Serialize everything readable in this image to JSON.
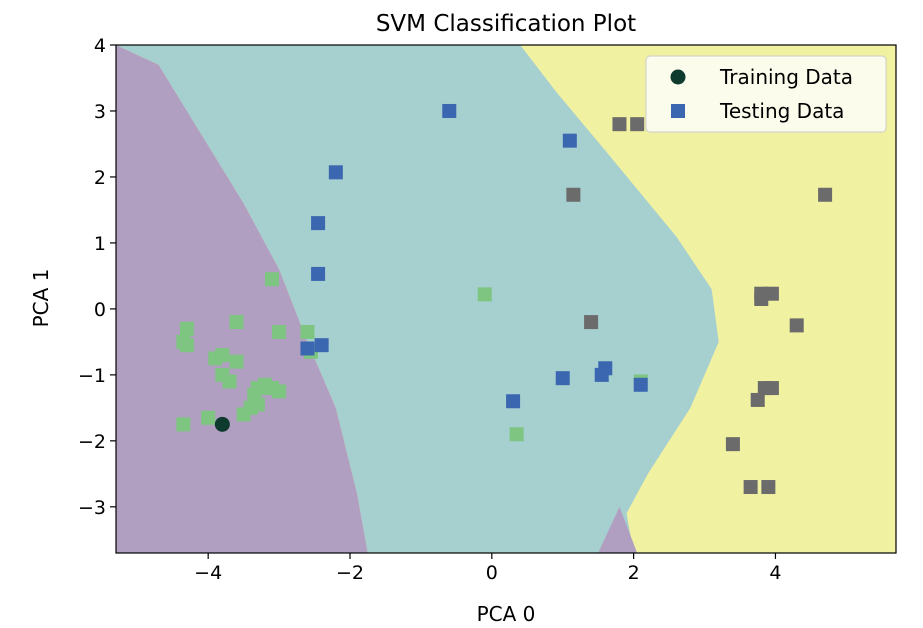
{
  "chart_data": {
    "type": "scatter",
    "title": "SVM Classification Plot",
    "xlabel": "PCA 0",
    "ylabel": "PCA 1",
    "xlim": [
      -5.3,
      5.7
    ],
    "ylim": [
      -3.7,
      4.0
    ],
    "xticks": [
      -4,
      -2,
      0,
      2,
      4
    ],
    "yticks": [
      -3,
      -2,
      -1,
      0,
      1,
      2,
      3,
      4
    ],
    "grid": false,
    "legend_position": "top-right",
    "regions": {
      "colors": {
        "class0": "#b19fc1",
        "class1": "#a6cfd0",
        "class2": "#f1f1a2"
      },
      "boundary_left": [
        [
          -5.3,
          4.0
        ],
        [
          -4.7,
          3.7
        ],
        [
          -4.3,
          3.0
        ],
        [
          -3.9,
          2.3
        ],
        [
          -3.5,
          1.6
        ],
        [
          -3.0,
          0.6
        ],
        [
          -2.6,
          -0.5
        ],
        [
          -2.2,
          -1.5
        ],
        [
          -1.9,
          -2.8
        ],
        [
          -1.75,
          -3.7
        ]
      ],
      "boundary_right": [
        [
          0.4,
          4.0
        ],
        [
          0.9,
          3.3
        ],
        [
          1.6,
          2.4
        ],
        [
          2.6,
          1.1
        ],
        [
          3.1,
          0.3
        ],
        [
          3.2,
          -0.5
        ],
        [
          2.8,
          -1.5
        ],
        [
          2.2,
          -2.5
        ],
        [
          1.9,
          -3.1
        ],
        [
          2.0,
          -3.7
        ]
      ],
      "pocket": [
        [
          1.5,
          -3.7
        ],
        [
          1.8,
          -3.0
        ],
        [
          2.05,
          -3.7
        ]
      ]
    },
    "series": [
      {
        "name": "Training Data",
        "marker": "circle",
        "color": "#0e3b2e",
        "points": [
          [
            -3.8,
            -1.75
          ]
        ]
      },
      {
        "name": "Testing Data",
        "marker": "square",
        "color": "#3a67b0",
        "points": []
      }
    ],
    "points_by_class": [
      {
        "class": "class0",
        "color": "#7dc580",
        "marker": "square",
        "points": [
          [
            -4.3,
            -0.3
          ],
          [
            -4.35,
            -0.5
          ],
          [
            -4.3,
            -0.55
          ],
          [
            -3.6,
            -0.2
          ],
          [
            -3.9,
            -0.75
          ],
          [
            -3.8,
            -0.7
          ],
          [
            -3.6,
            -0.8
          ],
          [
            -3.8,
            -1.0
          ],
          [
            -3.7,
            -1.1
          ],
          [
            -3.3,
            -1.2
          ],
          [
            -3.2,
            -1.15
          ],
          [
            -3.1,
            -1.2
          ],
          [
            -3.0,
            -1.25
          ],
          [
            -3.35,
            -1.3
          ],
          [
            -3.3,
            -1.45
          ],
          [
            -3.4,
            -1.5
          ],
          [
            -3.5,
            -1.6
          ],
          [
            -4.0,
            -1.65
          ],
          [
            -4.35,
            -1.75
          ],
          [
            -3.1,
            0.45
          ],
          [
            -3.0,
            -0.35
          ],
          [
            -2.6,
            -0.35
          ],
          [
            -2.55,
            -0.65
          ],
          [
            -0.1,
            0.22
          ],
          [
            2.1,
            -1.1
          ],
          [
            0.35,
            -1.9
          ]
        ]
      },
      {
        "class": "class1",
        "color": "#3a67b0",
        "marker": "square",
        "points": [
          [
            -0.6,
            3.0
          ],
          [
            1.1,
            2.55
          ],
          [
            -2.2,
            2.07
          ],
          [
            -2.45,
            1.3
          ],
          [
            -2.45,
            0.53
          ],
          [
            -2.6,
            -0.6
          ],
          [
            -2.4,
            -0.55
          ],
          [
            1.0,
            -1.05
          ],
          [
            1.55,
            -1.0
          ],
          [
            1.6,
            -0.9
          ],
          [
            2.1,
            -1.15
          ],
          [
            0.3,
            -1.4
          ]
        ]
      },
      {
        "class": "class2",
        "color": "#6b6b6b",
        "marker": "square",
        "points": [
          [
            1.8,
            2.8
          ],
          [
            2.05,
            2.8
          ],
          [
            1.15,
            1.73
          ],
          [
            4.7,
            1.73
          ],
          [
            1.4,
            -0.2
          ],
          [
            3.8,
            0.23
          ],
          [
            3.95,
            0.23
          ],
          [
            3.8,
            0.15
          ],
          [
            4.3,
            -0.25
          ],
          [
            3.85,
            -1.2
          ],
          [
            3.95,
            -1.2
          ],
          [
            3.75,
            -1.38
          ],
          [
            3.4,
            -2.05
          ],
          [
            3.65,
            -2.7
          ],
          [
            3.9,
            -2.7
          ]
        ]
      }
    ],
    "legend": [
      {
        "label": "Training Data",
        "marker": "circle",
        "color": "#0e3b2e"
      },
      {
        "label": "Testing Data",
        "marker": "square",
        "color": "#3a67b0"
      }
    ]
  }
}
